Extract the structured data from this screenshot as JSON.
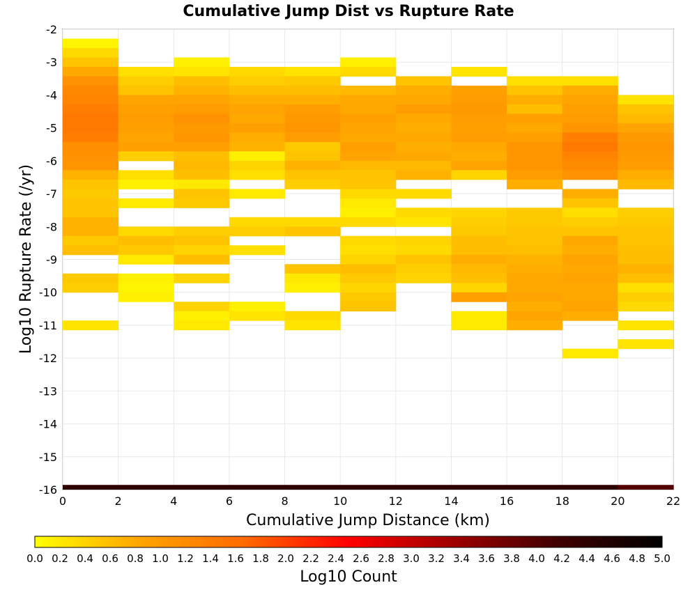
{
  "chart_data": {
    "type": "heatmap",
    "title": "Cumulative Jump Dist vs Rupture Rate",
    "xlabel": "Cumulative Jump Distance (km)",
    "ylabel": "Log10 Rupture Rate (/yr)",
    "xlim": [
      0,
      22
    ],
    "ylim": [
      -16,
      -2
    ],
    "xticks": [
      0,
      2,
      4,
      6,
      8,
      10,
      12,
      14,
      16,
      18,
      20,
      22
    ],
    "yticks": [
      -2,
      -3,
      -4,
      -5,
      -6,
      -7,
      -8,
      -9,
      -10,
      -11,
      -12,
      -13,
      -14,
      -15,
      -16
    ],
    "grid": true,
    "x_bin_width": 2,
    "y_bin_height": 0.2857,
    "colorbar": {
      "label": "Log10 Count",
      "range": [
        0,
        5
      ],
      "ticks": [
        "0.0",
        "0.2",
        "0.4",
        "0.6",
        "0.8",
        "1.0",
        "1.2",
        "1.4",
        "1.6",
        "1.8",
        "2.0",
        "2.2",
        "2.4",
        "2.6",
        "2.8",
        "3.0",
        "3.2",
        "3.4",
        "3.6",
        "3.8",
        "4.0",
        "4.2",
        "4.4",
        "4.6",
        "4.8",
        "5.0"
      ],
      "placement": "bottom",
      "colors": [
        "#ffff00",
        "#ffa500",
        "#ff6a00",
        "#ff0000",
        "#a00000",
        "#400000",
        "#000000"
      ]
    },
    "cells_columns": [
      "x_start",
      "y_start",
      "log10_count"
    ],
    "cells": [
      [
        0,
        -2.571,
        0.1
      ],
      [
        0,
        -2.857,
        0.35
      ],
      [
        0,
        -3.143,
        0.55
      ],
      [
        0,
        -3.429,
        0.8
      ],
      [
        0,
        -3.714,
        1.1
      ],
      [
        0,
        -4.0,
        1.25
      ],
      [
        0,
        -4.286,
        1.3
      ],
      [
        0,
        -4.571,
        1.4
      ],
      [
        0,
        -4.857,
        1.45
      ],
      [
        0,
        -5.143,
        1.45
      ],
      [
        0,
        -5.429,
        1.4
      ],
      [
        0,
        -5.714,
        1.15
      ],
      [
        0,
        -6.0,
        1.1
      ],
      [
        0,
        -6.286,
        1.05
      ],
      [
        0,
        -6.571,
        0.7
      ],
      [
        0,
        -6.857,
        0.55
      ],
      [
        0,
        -7.143,
        0.5
      ],
      [
        0,
        -7.429,
        0.55
      ],
      [
        0,
        -7.714,
        0.55
      ],
      [
        0,
        -8.0,
        0.7
      ],
      [
        0,
        -8.286,
        0.7
      ],
      [
        0,
        -8.571,
        0.5
      ],
      [
        0,
        -8.857,
        0.6
      ],
      [
        0,
        -9.714,
        0.5
      ],
      [
        0,
        -10.0,
        0.45
      ],
      [
        0,
        -11.143,
        0.25
      ],
      [
        2,
        -3.429,
        0.3
      ],
      [
        2,
        -3.714,
        0.45
      ],
      [
        2,
        -4.0,
        0.55
      ],
      [
        2,
        -4.286,
        0.85
      ],
      [
        2,
        -4.571,
        0.9
      ],
      [
        2,
        -4.857,
        0.95
      ],
      [
        2,
        -5.143,
        0.9
      ],
      [
        2,
        -5.429,
        0.85
      ],
      [
        2,
        -5.714,
        0.9
      ],
      [
        2,
        -6.0,
        0.45
      ],
      [
        2,
        -6.571,
        0.3
      ],
      [
        2,
        -6.857,
        0.15
      ],
      [
        2,
        -7.429,
        0.2
      ],
      [
        2,
        -8.286,
        0.35
      ],
      [
        2,
        -8.571,
        0.6
      ],
      [
        2,
        -8.857,
        0.5
      ],
      [
        2,
        -9.143,
        0.2
      ],
      [
        2,
        -9.714,
        0.15
      ],
      [
        2,
        -10.0,
        0.1
      ],
      [
        2,
        -10.286,
        0.15
      ],
      [
        4,
        -3.143,
        0.15
      ],
      [
        4,
        -3.429,
        0.25
      ],
      [
        4,
        -3.714,
        0.6
      ],
      [
        4,
        -4.0,
        0.7
      ],
      [
        4,
        -4.286,
        0.85
      ],
      [
        4,
        -4.571,
        0.95
      ],
      [
        4,
        -4.857,
        1.1
      ],
      [
        4,
        -5.143,
        1.0
      ],
      [
        4,
        -5.429,
        1.05
      ],
      [
        4,
        -5.714,
        0.9
      ],
      [
        4,
        -6.0,
        0.6
      ],
      [
        4,
        -6.286,
        0.65
      ],
      [
        4,
        -6.571,
        0.6
      ],
      [
        4,
        -6.857,
        0.2
      ],
      [
        4,
        -7.143,
        0.55
      ],
      [
        4,
        -7.429,
        0.5
      ],
      [
        4,
        -8.286,
        0.45
      ],
      [
        4,
        -8.571,
        0.55
      ],
      [
        4,
        -8.857,
        0.4
      ],
      [
        4,
        -9.143,
        0.6
      ],
      [
        4,
        -9.714,
        0.4
      ],
      [
        4,
        -10.571,
        0.4
      ],
      [
        4,
        -10.857,
        0.15
      ],
      [
        4,
        -11.143,
        0.2
      ],
      [
        6,
        -3.429,
        0.35
      ],
      [
        6,
        -3.714,
        0.45
      ],
      [
        6,
        -4.0,
        0.6
      ],
      [
        6,
        -4.286,
        0.75
      ],
      [
        6,
        -4.571,
        0.85
      ],
      [
        6,
        -4.857,
        0.8
      ],
      [
        6,
        -5.143,
        0.9
      ],
      [
        6,
        -5.429,
        0.75
      ],
      [
        6,
        -5.714,
        0.7
      ],
      [
        6,
        -6.0,
        0.15
      ],
      [
        6,
        -6.286,
        0.4
      ],
      [
        6,
        -6.571,
        0.3
      ],
      [
        6,
        -7.143,
        0.2
      ],
      [
        6,
        -8.0,
        0.35
      ],
      [
        6,
        -8.286,
        0.45
      ],
      [
        6,
        -8.857,
        0.3
      ],
      [
        6,
        -10.571,
        0.15
      ],
      [
        6,
        -10.857,
        0.25
      ],
      [
        8,
        -3.429,
        0.25
      ],
      [
        8,
        -3.714,
        0.5
      ],
      [
        8,
        -4.0,
        0.6
      ],
      [
        8,
        -4.286,
        0.75
      ],
      [
        8,
        -4.571,
        0.95
      ],
      [
        8,
        -4.857,
        1.0
      ],
      [
        8,
        -5.143,
        1.05
      ],
      [
        8,
        -5.429,
        0.95
      ],
      [
        8,
        -5.714,
        0.5
      ],
      [
        8,
        -6.0,
        0.55
      ],
      [
        8,
        -6.286,
        0.7
      ],
      [
        8,
        -6.571,
        0.55
      ],
      [
        8,
        -6.857,
        0.45
      ],
      [
        8,
        -8.0,
        0.35
      ],
      [
        8,
        -8.286,
        0.55
      ],
      [
        8,
        -9.429,
        0.55
      ],
      [
        8,
        -9.714,
        0.2
      ],
      [
        8,
        -10.0,
        0.15
      ],
      [
        8,
        -10.857,
        0.35
      ],
      [
        8,
        -11.143,
        0.25
      ],
      [
        10,
        -3.143,
        0.15
      ],
      [
        10,
        -3.429,
        0.35
      ],
      [
        10,
        -4.0,
        0.65
      ],
      [
        10,
        -4.286,
        0.8
      ],
      [
        10,
        -4.571,
        0.8
      ],
      [
        10,
        -4.857,
        0.9
      ],
      [
        10,
        -5.143,
        0.85
      ],
      [
        10,
        -5.429,
        0.8
      ],
      [
        10,
        -5.714,
        0.9
      ],
      [
        10,
        -6.0,
        0.85
      ],
      [
        10,
        -6.286,
        0.65
      ],
      [
        10,
        -6.571,
        0.55
      ],
      [
        10,
        -6.857,
        0.55
      ],
      [
        10,
        -7.143,
        0.35
      ],
      [
        10,
        -7.429,
        0.2
      ],
      [
        10,
        -7.714,
        0.15
      ],
      [
        10,
        -8.0,
        0.35
      ],
      [
        10,
        -8.571,
        0.35
      ],
      [
        10,
        -8.857,
        0.3
      ],
      [
        10,
        -9.143,
        0.4
      ],
      [
        10,
        -9.429,
        0.6
      ],
      [
        10,
        -9.714,
        0.5
      ],
      [
        10,
        -10.0,
        0.4
      ],
      [
        10,
        -10.286,
        0.5
      ],
      [
        10,
        -10.571,
        0.55
      ],
      [
        12,
        -3.714,
        0.55
      ],
      [
        12,
        -4.0,
        0.75
      ],
      [
        12,
        -4.286,
        0.8
      ],
      [
        12,
        -4.571,
        0.95
      ],
      [
        12,
        -4.857,
        0.8
      ],
      [
        12,
        -5.143,
        0.75
      ],
      [
        12,
        -5.429,
        0.8
      ],
      [
        12,
        -5.714,
        0.75
      ],
      [
        12,
        -6.0,
        0.8
      ],
      [
        12,
        -6.286,
        0.65
      ],
      [
        12,
        -6.571,
        0.7
      ],
      [
        12,
        -7.143,
        0.35
      ],
      [
        12,
        -7.714,
        0.35
      ],
      [
        12,
        -8.0,
        0.25
      ],
      [
        12,
        -8.571,
        0.4
      ],
      [
        12,
        -8.857,
        0.35
      ],
      [
        12,
        -9.143,
        0.55
      ],
      [
        12,
        -9.429,
        0.45
      ],
      [
        12,
        -9.714,
        0.4
      ],
      [
        14,
        -3.429,
        0.25
      ],
      [
        14,
        -4.0,
        0.9
      ],
      [
        14,
        -4.286,
        0.95
      ],
      [
        14,
        -4.571,
        1.0
      ],
      [
        14,
        -4.857,
        0.95
      ],
      [
        14,
        -5.143,
        0.9
      ],
      [
        14,
        -5.429,
        0.95
      ],
      [
        14,
        -5.714,
        0.8
      ],
      [
        14,
        -6.0,
        0.75
      ],
      [
        14,
        -6.286,
        0.85
      ],
      [
        14,
        -6.571,
        0.4
      ],
      [
        14,
        -7.714,
        0.4
      ],
      [
        14,
        -8.0,
        0.45
      ],
      [
        14,
        -8.286,
        0.5
      ],
      [
        14,
        -8.571,
        0.6
      ],
      [
        14,
        -8.857,
        0.6
      ],
      [
        14,
        -9.143,
        0.75
      ],
      [
        14,
        -9.429,
        0.65
      ],
      [
        14,
        -9.714,
        0.6
      ],
      [
        14,
        -10.0,
        0.4
      ],
      [
        14,
        -10.286,
        0.9
      ],
      [
        14,
        -10.857,
        0.2
      ],
      [
        14,
        -11.143,
        0.2
      ],
      [
        16,
        -3.714,
        0.3
      ],
      [
        16,
        -4.0,
        0.55
      ],
      [
        16,
        -4.286,
        0.75
      ],
      [
        16,
        -4.571,
        0.6
      ],
      [
        16,
        -4.857,
        0.9
      ],
      [
        16,
        -5.143,
        0.8
      ],
      [
        16,
        -5.429,
        0.9
      ],
      [
        16,
        -5.714,
        1.05
      ],
      [
        16,
        -6.0,
        1.05
      ],
      [
        16,
        -6.286,
        1.05
      ],
      [
        16,
        -6.571,
        0.95
      ],
      [
        16,
        -6.857,
        0.75
      ],
      [
        16,
        -7.714,
        0.5
      ],
      [
        16,
        -8.0,
        0.5
      ],
      [
        16,
        -8.286,
        0.55
      ],
      [
        16,
        -8.571,
        0.55
      ],
      [
        16,
        -8.857,
        0.6
      ],
      [
        16,
        -9.143,
        0.7
      ],
      [
        16,
        -9.429,
        0.75
      ],
      [
        16,
        -9.714,
        0.8
      ],
      [
        16,
        -10.0,
        0.8
      ],
      [
        16,
        -10.286,
        0.85
      ],
      [
        16,
        -10.571,
        0.75
      ],
      [
        16,
        -10.857,
        0.85
      ],
      [
        16,
        -11.143,
        0.75
      ],
      [
        18,
        -3.714,
        0.3
      ],
      [
        18,
        -4.0,
        0.75
      ],
      [
        18,
        -4.286,
        0.85
      ],
      [
        18,
        -4.571,
        0.9
      ],
      [
        18,
        -4.857,
        0.95
      ],
      [
        18,
        -5.143,
        1.05
      ],
      [
        18,
        -5.429,
        1.35
      ],
      [
        18,
        -5.714,
        1.45
      ],
      [
        18,
        -6.0,
        1.3
      ],
      [
        18,
        -6.286,
        1.2
      ],
      [
        18,
        -6.571,
        1.1
      ],
      [
        18,
        -7.143,
        0.75
      ],
      [
        18,
        -7.429,
        0.55
      ],
      [
        18,
        -7.714,
        0.3
      ],
      [
        18,
        -8.0,
        0.45
      ],
      [
        18,
        -8.286,
        0.55
      ],
      [
        18,
        -8.571,
        0.8
      ],
      [
        18,
        -8.857,
        0.75
      ],
      [
        18,
        -9.143,
        0.85
      ],
      [
        18,
        -9.429,
        0.8
      ],
      [
        18,
        -9.714,
        0.85
      ],
      [
        18,
        -10.0,
        0.8
      ],
      [
        18,
        -10.286,
        0.8
      ],
      [
        18,
        -10.571,
        0.85
      ],
      [
        18,
        -10.857,
        0.75
      ],
      [
        18,
        -12.0,
        0.2
      ],
      [
        20,
        -4.286,
        0.25
      ],
      [
        20,
        -4.571,
        0.55
      ],
      [
        20,
        -4.857,
        0.65
      ],
      [
        20,
        -5.143,
        0.85
      ],
      [
        20,
        -5.429,
        1.0
      ],
      [
        20,
        -5.714,
        1.05
      ],
      [
        20,
        -6.0,
        1.0
      ],
      [
        20,
        -6.286,
        0.95
      ],
      [
        20,
        -6.571,
        0.75
      ],
      [
        20,
        -6.857,
        0.65
      ],
      [
        20,
        -7.714,
        0.45
      ],
      [
        20,
        -8.0,
        0.5
      ],
      [
        20,
        -8.286,
        0.55
      ],
      [
        20,
        -8.571,
        0.55
      ],
      [
        20,
        -8.857,
        0.6
      ],
      [
        20,
        -9.143,
        0.6
      ],
      [
        20,
        -9.429,
        0.7
      ],
      [
        20,
        -9.714,
        0.6
      ],
      [
        20,
        -10.0,
        0.3
      ],
      [
        20,
        -10.286,
        0.45
      ],
      [
        20,
        -10.571,
        0.35
      ],
      [
        20,
        -11.143,
        0.25
      ],
      [
        20,
        -11.714,
        0.25
      ]
    ],
    "bottom_row": {
      "y_start": -16.0,
      "y_end": -15.857,
      "values": [
        4.4,
        4.4,
        4.4,
        4.4,
        4.4,
        4.4,
        4.4,
        4.4,
        4.4,
        4.4,
        4.0
      ]
    }
  }
}
